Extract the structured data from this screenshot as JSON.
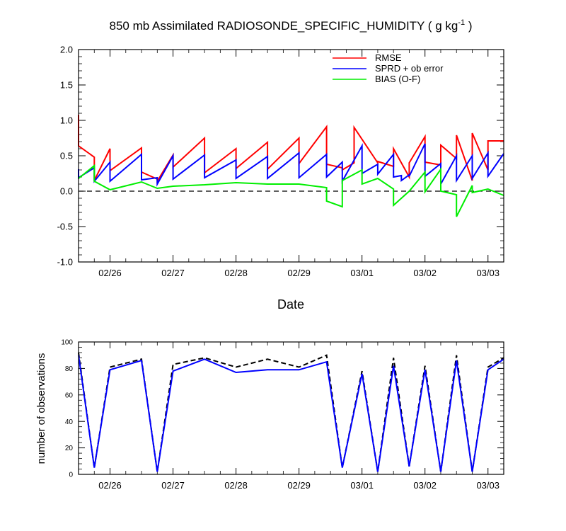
{
  "chart_data": [
    {
      "type": "line",
      "title": "850 mb Assimilated RADIOSONDE_SPECIFIC_HUMIDITY ( g kg",
      "title_superscript": "-1",
      "title_suffix": " )",
      "xlabel": "Date",
      "ylabel": "",
      "xlim": [
        0,
        54
      ],
      "ylim": [
        -1.0,
        2.0
      ],
      "yticks": [
        -1.0,
        -0.5,
        0.0,
        0.5,
        1.0,
        1.5,
        2.0
      ],
      "ytick_labels": [
        "-1.0",
        "-0.5",
        "0.0",
        "0.5",
        "1.0",
        "1.5",
        "2.0"
      ],
      "x_major_ticks": [
        4,
        12,
        20,
        28,
        36,
        44,
        52
      ],
      "x_tick_labels": [
        "02/26",
        "02/27",
        "02/28",
        "02/29",
        "03/01",
        "03/02",
        "03/03"
      ],
      "x_minor_ticks": [
        0,
        2,
        6,
        8,
        10,
        14,
        16,
        18,
        22,
        24,
        26,
        30,
        32,
        34,
        38,
        40,
        42,
        46,
        48,
        50,
        54
      ],
      "zero_line": "dashed",
      "legend_location": "top-right",
      "series": [
        {
          "name": "RMSE",
          "color": "#ff0000",
          "x": [
            0,
            0,
            2,
            2,
            4,
            4,
            8,
            8,
            10,
            10,
            12,
            12,
            16,
            16,
            20,
            20,
            24,
            24,
            28,
            28,
            31.5,
            31.5,
            33.5,
            33.5,
            35,
            35,
            38,
            38,
            40,
            40,
            42,
            42,
            44,
            44,
            46,
            46,
            48,
            48,
            50,
            50,
            52,
            52,
            54
          ],
          "y": [
            1.08,
            0.64,
            0.48,
            0.15,
            0.6,
            0.29,
            0.61,
            0.27,
            0.17,
            0.14,
            0.51,
            0.34,
            0.75,
            0.26,
            0.6,
            0.32,
            0.69,
            0.31,
            0.75,
            0.39,
            0.91,
            0.38,
            0.33,
            0.3,
            0.4,
            0.9,
            0.4,
            0.42,
            0.35,
            0.6,
            0.2,
            0.4,
            0.77,
            0.41,
            0.37,
            0.65,
            0.46,
            0.79,
            0.15,
            0.82,
            0.3,
            0.71,
            0.71
          ]
        },
        {
          "name": "SPRD + ob error",
          "color": "#0000ff",
          "x": [
            0,
            0,
            2,
            2,
            4,
            4,
            8,
            8,
            10,
            10,
            12,
            12,
            16,
            16,
            20,
            20,
            24,
            24,
            28,
            28,
            31.5,
            31.5,
            33.5,
            33.5,
            36,
            36,
            38,
            38,
            40,
            40,
            41,
            41,
            42,
            42,
            44,
            44,
            46,
            46,
            48,
            48,
            50,
            50,
            52,
            52,
            54
          ],
          "y": [
            0.31,
            0.19,
            0.33,
            0.14,
            0.41,
            0.14,
            0.52,
            0.16,
            0.19,
            0.1,
            0.5,
            0.17,
            0.51,
            0.19,
            0.44,
            0.18,
            0.49,
            0.18,
            0.54,
            0.19,
            0.52,
            0.2,
            0.41,
            0.14,
            0.64,
            0.25,
            0.38,
            0.24,
            0.52,
            0.2,
            0.22,
            0.15,
            0.23,
            0.21,
            0.67,
            0.21,
            0.39,
            0.1,
            0.5,
            0.15,
            0.5,
            0.18,
            0.54,
            0.21,
            0.53
          ]
        },
        {
          "name": "BIAS (O-F)",
          "color": "#00ee00",
          "x": [
            0,
            2,
            2,
            4,
            8,
            10,
            12,
            16,
            20,
            24,
            28,
            31.5,
            31.5,
            33.5,
            33.5,
            36,
            36,
            38,
            40,
            40,
            42,
            44,
            44,
            46,
            46,
            48,
            48,
            50,
            50,
            52,
            54
          ],
          "y": [
            0.18,
            0.36,
            0.14,
            0.02,
            0.13,
            0.04,
            0.07,
            0.09,
            0.12,
            0.1,
            0.1,
            0.05,
            -0.14,
            -0.22,
            0.15,
            0.3,
            0.1,
            0.18,
            0.03,
            -0.2,
            0.0,
            0.27,
            -0.01,
            0.31,
            0.0,
            -0.05,
            -0.36,
            0.08,
            -0.02,
            0.03,
            -0.06
          ]
        }
      ]
    },
    {
      "type": "line",
      "title": "",
      "xlabel": "",
      "ylabel": "number of observations",
      "xlim": [
        0,
        54
      ],
      "ylim": [
        0,
        100
      ],
      "yticks": [
        0,
        20,
        40,
        60,
        80,
        100
      ],
      "ytick_labels": [
        "0",
        "20",
        "40",
        "60",
        "80",
        "100"
      ],
      "x_major_ticks": [
        4,
        12,
        20,
        28,
        36,
        44,
        52
      ],
      "x_tick_labels": [
        "02/26",
        "02/27",
        "02/28",
        "02/29",
        "03/01",
        "03/02",
        "03/03"
      ],
      "x_minor_ticks": [
        0,
        2,
        6,
        8,
        10,
        14,
        16,
        18,
        22,
        24,
        26,
        30,
        32,
        34,
        38,
        40,
        42,
        46,
        48,
        50,
        54
      ],
      "series": [
        {
          "color": "#000000",
          "style": "dashed",
          "x": [
            0,
            2,
            4,
            8,
            10,
            12,
            16,
            20,
            24,
            28,
            31.5,
            33.5,
            36,
            38,
            40,
            42,
            44,
            46,
            48,
            50,
            52,
            54
          ],
          "y": [
            92,
            5,
            81,
            87,
            2,
            83,
            88,
            81,
            87,
            81,
            90,
            5,
            78,
            2,
            88,
            6,
            82,
            2,
            90,
            2,
            81,
            88
          ]
        },
        {
          "color": "#0000ff",
          "style": "solid",
          "x": [
            0,
            2,
            4,
            8,
            10,
            12,
            16,
            20,
            24,
            28,
            31.5,
            33.5,
            36,
            38,
            40,
            42,
            44,
            46,
            48,
            50,
            52,
            54
          ],
          "y": [
            90,
            5,
            79,
            86,
            2,
            78,
            87,
            77,
            79,
            79,
            85,
            5,
            76,
            2,
            82,
            6,
            79,
            2,
            86,
            2,
            79,
            87
          ]
        }
      ]
    }
  ]
}
